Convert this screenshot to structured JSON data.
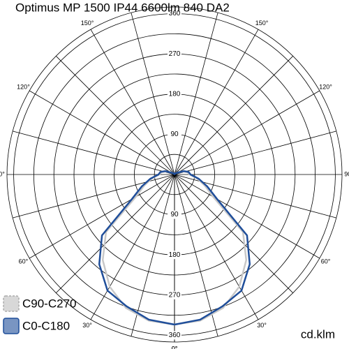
{
  "chart_data": {
    "type": "polar",
    "title": "Optimus MP 1500 IP44 6600lm 840 DA2",
    "unit_label": "cd.klm",
    "angles": [
      0,
      10,
      20,
      30,
      40,
      50,
      60,
      70,
      80,
      90,
      100,
      110,
      120,
      130,
      140,
      150,
      160,
      170,
      180,
      190,
      200,
      210,
      220,
      230,
      240,
      250,
      260,
      270,
      280,
      290,
      300,
      310,
      320,
      330,
      340,
      350,
      360
    ],
    "series": [
      {
        "name": "C90-C270",
        "color": "#c8c8c8",
        "values": [
          336,
          332,
          318,
          290,
          250,
          200,
          100,
          72,
          52,
          34,
          30,
          20,
          8,
          5,
          3,
          2,
          2,
          1,
          1,
          1,
          2,
          2,
          3,
          5,
          8,
          20,
          30,
          34,
          52,
          72,
          100,
          200,
          250,
          290,
          318,
          332,
          336
        ]
      },
      {
        "name": "C0-C180",
        "color": "#1f4e9a",
        "values": [
          336,
          330,
          314,
          300,
          262,
          212,
          110,
          78,
          55,
          36,
          32,
          22,
          8,
          5,
          3,
          2,
          2,
          1,
          1,
          1,
          2,
          2,
          3,
          5,
          8,
          22,
          32,
          36,
          55,
          78,
          110,
          212,
          262,
          300,
          314,
          330,
          336
        ]
      }
    ],
    "rlim": [
      0,
      375
    ],
    "rticks": [
      90,
      180,
      270,
      360
    ],
    "rminor": [
      45,
      135,
      225,
      315
    ],
    "aticks": [
      {
        "value": 0,
        "label": "0°"
      },
      {
        "value": 30,
        "label": "30°"
      },
      {
        "value": 60,
        "label": "60°"
      },
      {
        "value": 90,
        "label": "90°"
      },
      {
        "value": 120,
        "label": "120°"
      },
      {
        "value": 150,
        "label": "150°"
      }
    ],
    "legend": "bottom-left"
  }
}
